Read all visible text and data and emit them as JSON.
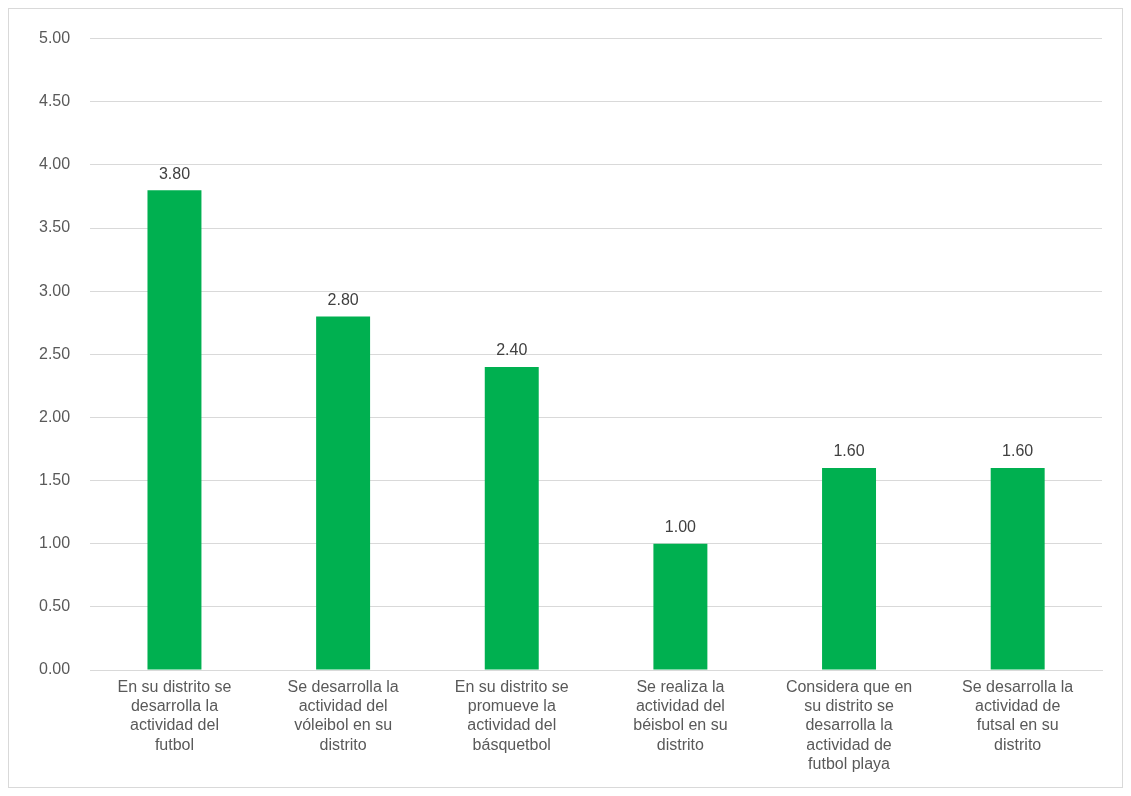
{
  "chart_data": {
    "type": "bar",
    "categories": [
      "En su distrito se desarrolla la actividad del futbol",
      "Se desarrolla la actividad del vóleibol en su distrito",
      "En su distrito se promueve la actividad del básquetbol",
      "Se realiza la actividad del béisbol en su distrito",
      "Considera que en su distrito se desarrolla la actividad de futbol playa",
      "Se desarrolla la actividad de futsal en su distrito"
    ],
    "values": [
      3.8,
      2.8,
      2.4,
      1.0,
      1.6,
      1.6
    ],
    "value_labels": [
      "3.80",
      "2.80",
      "2.40",
      "1.00",
      "1.60",
      "1.60"
    ],
    "color": "#00b050",
    "ylim": [
      0,
      5
    ],
    "yticks": [
      {
        "value": 0,
        "label": "0.00"
      },
      {
        "value": 0.5,
        "label": "0.50"
      },
      {
        "value": 1,
        "label": "1.00"
      },
      {
        "value": 1.5,
        "label": "1.50"
      },
      {
        "value": 2,
        "label": "2.00"
      },
      {
        "value": 2.5,
        "label": "2.50"
      },
      {
        "value": 3,
        "label": "3.00"
      },
      {
        "value": 3.5,
        "label": "3.50"
      },
      {
        "value": 4,
        "label": "4.00"
      },
      {
        "value": 4.5,
        "label": "4.50"
      },
      {
        "value": 5,
        "label": "5.00"
      }
    ],
    "grid": "y"
  }
}
